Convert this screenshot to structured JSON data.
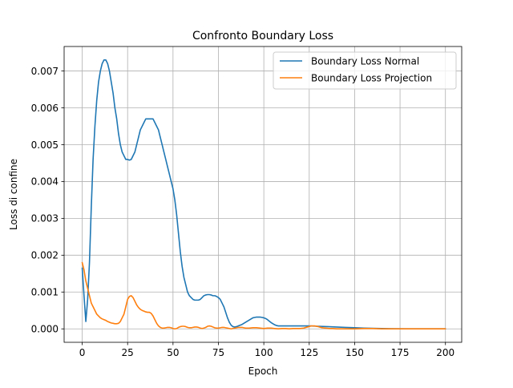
{
  "chart_data": {
    "type": "line",
    "title": "Confronto Boundary Loss",
    "xlabel": "Epoch",
    "ylabel": "Loss di confine",
    "xlim": [
      -9.95,
      208.95
    ],
    "ylim": [
      -0.000365,
      0.007665
    ],
    "xticks": [
      0,
      25,
      50,
      75,
      100,
      125,
      150,
      175,
      200
    ],
    "xtick_labels": [
      "0",
      "25",
      "50",
      "75",
      "100",
      "125",
      "150",
      "175",
      "200"
    ],
    "yticks": [
      0.0,
      0.001,
      0.002,
      0.003,
      0.004,
      0.005,
      0.006,
      0.007
    ],
    "ytick_labels": [
      "0.000",
      "0.001",
      "0.002",
      "0.003",
      "0.004",
      "0.005",
      "0.006",
      "0.007"
    ],
    "grid": true,
    "legend_position": "top-right",
    "series": [
      {
        "name": "Boundary Loss Normal",
        "color": "#1f77b4",
        "points": [
          [
            0,
            0.00165
          ],
          [
            1,
            0.0009
          ],
          [
            2,
            0.0002
          ],
          [
            3,
            0.0008
          ],
          [
            4,
            0.0018
          ],
          [
            5,
            0.0033
          ],
          [
            6,
            0.0046
          ],
          [
            7,
            0.0055
          ],
          [
            8,
            0.0062
          ],
          [
            9,
            0.0067
          ],
          [
            10,
            0.007
          ],
          [
            11,
            0.0072
          ],
          [
            12,
            0.0073
          ],
          [
            13,
            0.0073
          ],
          [
            14,
            0.0072
          ],
          [
            15,
            0.007
          ],
          [
            16,
            0.0067
          ],
          [
            17,
            0.0064
          ],
          [
            18,
            0.006
          ],
          [
            19,
            0.0057
          ],
          [
            20,
            0.0053
          ],
          [
            21,
            0.005
          ],
          [
            22,
            0.0048
          ],
          [
            23,
            0.0047
          ],
          [
            24,
            0.0046
          ],
          [
            25,
            0.0046
          ],
          [
            26,
            0.00458
          ],
          [
            27,
            0.0046
          ],
          [
            28,
            0.0047
          ],
          [
            29,
            0.0048
          ],
          [
            30,
            0.005
          ],
          [
            31,
            0.0052
          ],
          [
            32,
            0.0054
          ],
          [
            33,
            0.0055
          ],
          [
            34,
            0.0056
          ],
          [
            35,
            0.0057
          ],
          [
            36,
            0.0057
          ],
          [
            37,
            0.0057
          ],
          [
            38,
            0.0057
          ],
          [
            39,
            0.0057
          ],
          [
            40,
            0.0056
          ],
          [
            41,
            0.0055
          ],
          [
            42,
            0.0054
          ],
          [
            43,
            0.0052
          ],
          [
            44,
            0.005
          ],
          [
            45,
            0.0048
          ],
          [
            46,
            0.0046
          ],
          [
            47,
            0.0044
          ],
          [
            48,
            0.0042
          ],
          [
            49,
            0.004
          ],
          [
            50,
            0.0038
          ],
          [
            51,
            0.0035
          ],
          [
            52,
            0.0031
          ],
          [
            53,
            0.0026
          ],
          [
            54,
            0.0021
          ],
          [
            55,
            0.0017
          ],
          [
            56,
            0.0014
          ],
          [
            57,
            0.0012
          ],
          [
            58,
            0.001
          ],
          [
            59,
            0.0009
          ],
          [
            60,
            0.00085
          ],
          [
            61,
            0.0008
          ],
          [
            62,
            0.00078
          ],
          [
            63,
            0.00078
          ],
          [
            64,
            0.00078
          ],
          [
            65,
            0.0008
          ],
          [
            66,
            0.00085
          ],
          [
            67,
            0.0009
          ],
          [
            68,
            0.00092
          ],
          [
            69,
            0.00093
          ],
          [
            70,
            0.00093
          ],
          [
            71,
            0.00092
          ],
          [
            72,
            0.0009
          ],
          [
            73,
            0.0009
          ],
          [
            74,
            0.00088
          ],
          [
            75,
            0.00085
          ],
          [
            76,
            0.0008
          ],
          [
            77,
            0.0007
          ],
          [
            78,
            0.0006
          ],
          [
            79,
            0.00045
          ],
          [
            80,
            0.0003
          ],
          [
            81,
            0.00018
          ],
          [
            82,
            0.0001
          ],
          [
            83,
            6e-05
          ],
          [
            84,
            5e-05
          ],
          [
            85,
            6e-05
          ],
          [
            86,
            8e-05
          ],
          [
            87,
            0.0001
          ],
          [
            88,
            0.00012
          ],
          [
            89,
            0.00015
          ],
          [
            90,
            0.00018
          ],
          [
            91,
            0.00021
          ],
          [
            92,
            0.00024
          ],
          [
            93,
            0.00027
          ],
          [
            94,
            0.0003
          ],
          [
            95,
            0.00031
          ],
          [
            96,
            0.00032
          ],
          [
            97,
            0.00032
          ],
          [
            98,
            0.00032
          ],
          [
            99,
            0.00031
          ],
          [
            100,
            0.0003
          ],
          [
            101,
            0.00028
          ],
          [
            102,
            0.00025
          ],
          [
            103,
            0.00021
          ],
          [
            104,
            0.00017
          ],
          [
            105,
            0.00014
          ],
          [
            106,
            0.00011
          ],
          [
            107,
            9e-05
          ],
          [
            108,
            8e-05
          ],
          [
            109,
            8e-05
          ],
          [
            110,
            8e-05
          ],
          [
            115,
            8e-05
          ],
          [
            120,
            8e-05
          ],
          [
            125,
            8e-05
          ],
          [
            130,
            7e-05
          ],
          [
            135,
            6e-05
          ],
          [
            140,
            5e-05
          ],
          [
            145,
            4e-05
          ],
          [
            150,
            3e-05
          ],
          [
            155,
            2e-05
          ],
          [
            160,
            1.5e-05
          ],
          [
            165,
            1e-05
          ],
          [
            170,
            5e-06
          ],
          [
            180,
            0.0
          ],
          [
            190,
            0.0
          ],
          [
            200,
            0.0
          ]
        ]
      },
      {
        "name": "Boundary Loss Projection",
        "color": "#ff7f0e",
        "points": [
          [
            0,
            0.0018
          ],
          [
            1,
            0.0016
          ],
          [
            2,
            0.0013
          ],
          [
            3,
            0.0011
          ],
          [
            4,
            0.0009
          ],
          [
            5,
            0.0007
          ],
          [
            6,
            0.0006
          ],
          [
            7,
            0.0005
          ],
          [
            8,
            0.0004
          ],
          [
            9,
            0.00035
          ],
          [
            10,
            0.0003
          ],
          [
            11,
            0.00027
          ],
          [
            12,
            0.00025
          ],
          [
            13,
            0.00023
          ],
          [
            14,
            0.0002
          ],
          [
            15,
            0.00018
          ],
          [
            16,
            0.00016
          ],
          [
            17,
            0.00015
          ],
          [
            18,
            0.00014
          ],
          [
            19,
            0.00014
          ],
          [
            20,
            0.00015
          ],
          [
            21,
            0.0002
          ],
          [
            22,
            0.0003
          ],
          [
            23,
            0.0004
          ],
          [
            24,
            0.0006
          ],
          [
            25,
            0.0008
          ],
          [
            26,
            0.00088
          ],
          [
            27,
            0.0009
          ],
          [
            28,
            0.00085
          ],
          [
            29,
            0.00075
          ],
          [
            30,
            0.00065
          ],
          [
            31,
            0.00058
          ],
          [
            32,
            0.00053
          ],
          [
            33,
            0.0005
          ],
          [
            34,
            0.00048
          ],
          [
            35,
            0.00046
          ],
          [
            36,
            0.00045
          ],
          [
            37,
            0.00045
          ],
          [
            38,
            0.00042
          ],
          [
            39,
            0.00035
          ],
          [
            40,
            0.00025
          ],
          [
            41,
            0.00015
          ],
          [
            42,
            8e-05
          ],
          [
            43,
            4e-05
          ],
          [
            44,
            2e-05
          ],
          [
            45,
            2e-05
          ],
          [
            46,
            3e-05
          ],
          [
            47,
            4e-05
          ],
          [
            48,
            4e-05
          ],
          [
            49,
            3e-05
          ],
          [
            50,
            1e-05
          ],
          [
            51,
            0.0
          ],
          [
            52,
            1e-05
          ],
          [
            53,
            4e-05
          ],
          [
            54,
            6e-05
          ],
          [
            55,
            7e-05
          ],
          [
            56,
            7e-05
          ],
          [
            57,
            6e-05
          ],
          [
            58,
            4e-05
          ],
          [
            59,
            3e-05
          ],
          [
            60,
            3e-05
          ],
          [
            61,
            4e-05
          ],
          [
            62,
            5e-05
          ],
          [
            63,
            5e-05
          ],
          [
            64,
            4e-05
          ],
          [
            65,
            2e-05
          ],
          [
            66,
            1e-05
          ],
          [
            67,
            2e-05
          ],
          [
            68,
            4e-05
          ],
          [
            69,
            7e-05
          ],
          [
            70,
            8e-05
          ],
          [
            71,
            7e-05
          ],
          [
            72,
            5e-05
          ],
          [
            73,
            3e-05
          ],
          [
            74,
            2e-05
          ],
          [
            75,
            2e-05
          ],
          [
            76,
            3e-05
          ],
          [
            77,
            4e-05
          ],
          [
            78,
            4e-05
          ],
          [
            79,
            3e-05
          ],
          [
            80,
            2e-05
          ],
          [
            81,
            1e-05
          ],
          [
            82,
            0.0
          ],
          [
            83,
            1e-05
          ],
          [
            84,
            2e-05
          ],
          [
            85,
            3e-05
          ],
          [
            86,
            4e-05
          ],
          [
            87,
            4e-05
          ],
          [
            88,
            4e-05
          ],
          [
            89,
            3e-05
          ],
          [
            90,
            2e-05
          ],
          [
            92,
            2e-05
          ],
          [
            94,
            3e-05
          ],
          [
            96,
            3e-05
          ],
          [
            98,
            2e-05
          ],
          [
            100,
            1e-05
          ],
          [
            102,
            2e-05
          ],
          [
            104,
            2e-05
          ],
          [
            106,
            1e-05
          ],
          [
            108,
            0.0
          ],
          [
            110,
            1e-05
          ],
          [
            112,
            1e-05
          ],
          [
            114,
            0.0
          ],
          [
            116,
            1e-05
          ],
          [
            118,
            1e-05
          ],
          [
            120,
            1e-05
          ],
          [
            122,
            2e-05
          ],
          [
            124,
            5e-05
          ],
          [
            126,
            8e-05
          ],
          [
            128,
            8e-05
          ],
          [
            130,
            6e-05
          ],
          [
            132,
            3e-05
          ],
          [
            134,
            2e-05
          ],
          [
            136,
            1e-05
          ],
          [
            138,
            1e-05
          ],
          [
            140,
            0.0
          ],
          [
            145,
            0.0
          ],
          [
            150,
            0.0
          ],
          [
            155,
            1e-05
          ],
          [
            160,
            1e-05
          ],
          [
            165,
            0.0
          ],
          [
            170,
            0.0
          ],
          [
            180,
            0.0
          ],
          [
            190,
            0.0
          ],
          [
            200,
            0.0
          ]
        ]
      }
    ]
  }
}
